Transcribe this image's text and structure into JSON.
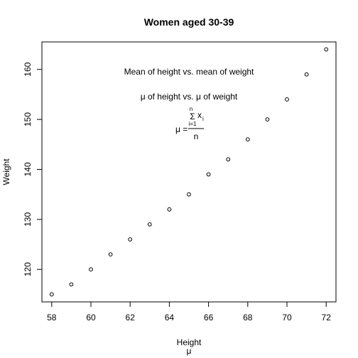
{
  "chart_data": {
    "type": "scatter",
    "title": "Women aged 30-39",
    "xlabel": "Height",
    "xlabel_sub": "μ",
    "ylabel": "Weight",
    "x": [
      58,
      59,
      60,
      61,
      62,
      63,
      64,
      65,
      66,
      67,
      68,
      69,
      70,
      71,
      72
    ],
    "y": [
      115,
      117,
      120,
      123,
      126,
      129,
      132,
      135,
      139,
      142,
      146,
      150,
      154,
      159,
      164
    ],
    "xlim": [
      57.5,
      72.5
    ],
    "ylim": [
      113.5,
      165.5
    ],
    "xticks": [
      "58",
      "60",
      "62",
      "64",
      "66",
      "68",
      "70",
      "72"
    ],
    "yticks": [
      "120",
      "130",
      "140",
      "150",
      "160"
    ],
    "annotations": {
      "line1": "Mean of height vs. mean of weight",
      "line2": "μ of height vs. μ of weight",
      "formula_lhs": "μ =",
      "formula_sigma": "Σ",
      "formula_upper": "n",
      "formula_lower": "i=1",
      "formula_term": "x",
      "formula_sub": "i",
      "formula_den": "n"
    },
    "grid": false,
    "legend": "none",
    "marker": "open-circle",
    "colors": {
      "points": "#000000",
      "frame": "#000000"
    }
  }
}
